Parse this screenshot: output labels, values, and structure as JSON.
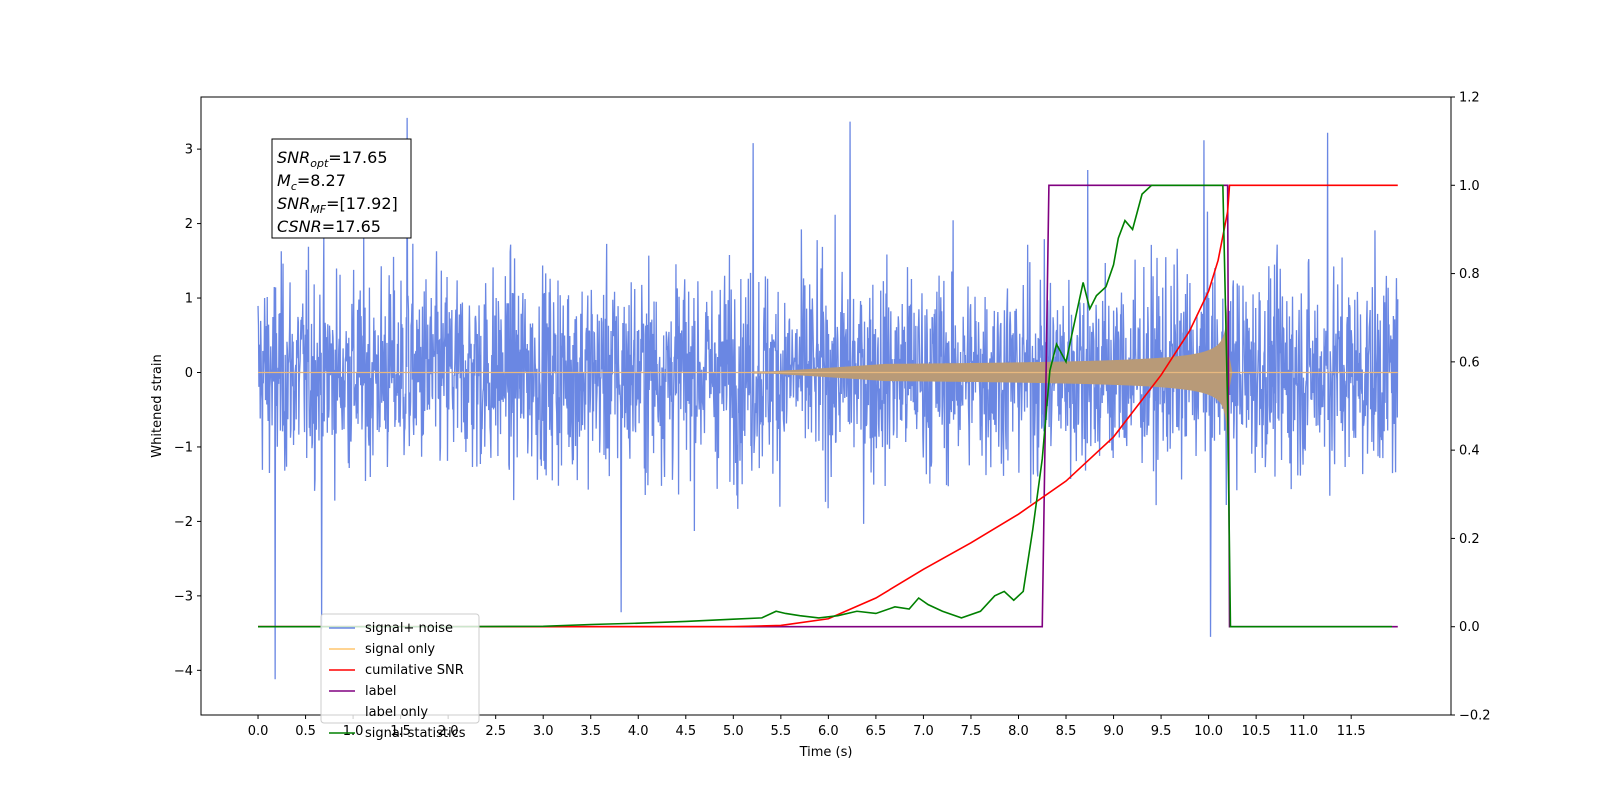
{
  "chart_data": {
    "type": "line",
    "xlabel": "Time (s)",
    "ylabel": "Whitened strain",
    "xlim": [
      -0.6,
      12.55
    ],
    "ylim": [
      -4.6,
      3.7
    ],
    "y2lim": [
      -0.2,
      1.2
    ],
    "grid": false,
    "legend_position": "lower-left",
    "x_ticks": [
      "0.0",
      "0.5",
      "1.0",
      "1.5",
      "2.0",
      "2.5",
      "3.0",
      "3.5",
      "4.0",
      "4.5",
      "5.0",
      "5.5",
      "6.0",
      "6.5",
      "7.0",
      "7.5",
      "8.0",
      "8.5",
      "9.0",
      "9.5",
      "10.0",
      "10.5",
      "11.0",
      "11.5"
    ],
    "y_ticks": [
      "3",
      "2",
      "1",
      "0",
      "−1",
      "−2",
      "−3",
      "−4"
    ],
    "y2_ticks": [
      "1.2",
      "1.0",
      "0.8",
      "0.6",
      "0.4",
      "0.2",
      "0.0",
      "−0.2"
    ],
    "info_box": {
      "snr_opt": {
        "main": "SNR",
        "sub": "opt",
        "value": "=17.65"
      },
      "mc": {
        "main": "M",
        "sub": "c",
        "value": "=8.27"
      },
      "snr_mf": {
        "main": "SNR",
        "sub": "MF",
        "value": "=[17.92]"
      },
      "csnr": {
        "main": "CSNR",
        "sub": "",
        "value": "=17.65"
      }
    },
    "series": [
      {
        "name": "signal+ noise",
        "color": "#6a87e3",
        "axis": "left",
        "kind": "noise",
        "x_range": [
          0.0,
          11.99
        ],
        "amplitude": 1.6,
        "peaks": [
          [
            1.57,
            3.42
          ],
          [
            8.73,
            2.72
          ],
          [
            3.82,
            -3.22
          ],
          [
            0.18,
            -4.12
          ],
          [
            9.95,
            3.12
          ],
          [
            10.02,
            -3.55
          ],
          [
            6.23,
            3.37
          ],
          [
            11.25,
            3.22
          ],
          [
            0.67,
            -3.45
          ],
          [
            5.21,
            3.08
          ]
        ]
      },
      {
        "name": "signal only",
        "color": "#c9a070",
        "axis": "left",
        "kind": "chirp",
        "t_merge": 10.2,
        "t_end": 10.23
      },
      {
        "name": "cumilative SNR",
        "color": "#ff0000",
        "axis": "right",
        "x": [
          0.0,
          5.0,
          5.5,
          6.0,
          6.5,
          7.0,
          7.5,
          8.0,
          8.5,
          9.0,
          9.5,
          9.8,
          10.0,
          10.1,
          10.2,
          10.22,
          11.99
        ],
        "y": [
          0.0,
          0.0,
          0.003,
          0.018,
          0.065,
          0.13,
          0.19,
          0.255,
          0.33,
          0.43,
          0.57,
          0.67,
          0.76,
          0.83,
          0.94,
          1.0,
          1.0
        ]
      },
      {
        "name": "label",
        "color": "#800080",
        "axis": "right",
        "x": [
          0.0,
          8.25,
          8.32,
          10.18,
          10.2,
          10.22,
          11.99
        ],
        "y": [
          0.0,
          0.0,
          1.0,
          1.0,
          1.0,
          0.0,
          0.0
        ]
      },
      {
        "name": "label only",
        "color": "#ffffff",
        "axis": "right",
        "x": [],
        "y": []
      },
      {
        "name": "signal statistics",
        "color": "#008000",
        "axis": "right",
        "x": [
          0.0,
          2.0,
          3.0,
          3.5,
          4.0,
          4.5,
          5.0,
          5.3,
          5.45,
          5.55,
          5.7,
          5.9,
          6.1,
          6.3,
          6.5,
          6.7,
          6.85,
          6.95,
          7.05,
          7.2,
          7.4,
          7.6,
          7.75,
          7.85,
          7.95,
          8.05,
          8.15,
          8.25,
          8.33,
          8.4,
          8.5,
          8.6,
          8.68,
          8.75,
          8.82,
          8.92,
          9.0,
          9.05,
          9.12,
          9.2,
          9.3,
          9.4,
          9.6,
          9.8,
          10.0,
          10.15,
          10.2,
          10.23,
          11.93
        ],
        "y": [
          0.0,
          0.0,
          0.001,
          0.005,
          0.008,
          0.012,
          0.017,
          0.02,
          0.035,
          0.03,
          0.025,
          0.02,
          0.025,
          0.035,
          0.03,
          0.045,
          0.04,
          0.065,
          0.05,
          0.035,
          0.02,
          0.035,
          0.07,
          0.08,
          0.06,
          0.08,
          0.22,
          0.38,
          0.58,
          0.64,
          0.6,
          0.7,
          0.78,
          0.72,
          0.75,
          0.77,
          0.82,
          0.88,
          0.92,
          0.9,
          0.98,
          1.0,
          1.0,
          1.0,
          1.0,
          1.0,
          0.5,
          0.0,
          0.0
        ]
      }
    ]
  }
}
